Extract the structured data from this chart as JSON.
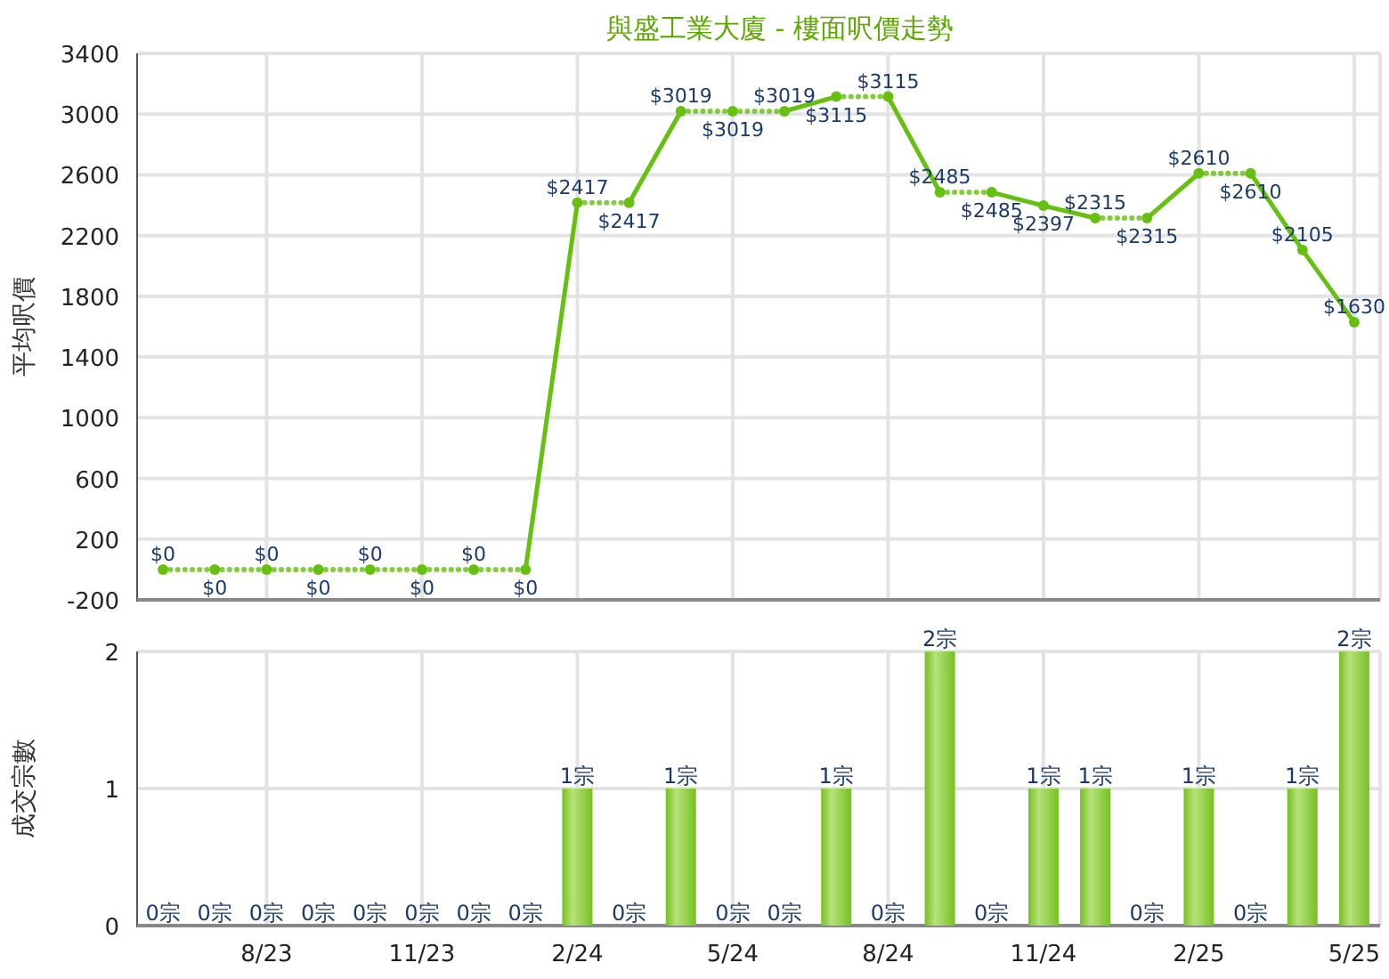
{
  "chart_data": [
    {
      "type": "line",
      "title": "與盛工業大廈 - 樓面呎價走勢",
      "ylabel": "平均呎價",
      "categories": [
        null,
        null,
        null,
        null,
        null,
        null,
        null,
        null,
        null,
        null,
        null,
        null,
        null,
        null,
        null,
        null,
        null,
        null,
        null,
        null,
        null,
        null,
        null,
        null
      ],
      "series": [
        {
          "color": "#66c010",
          "values": [
            0,
            0,
            0,
            0,
            0,
            0,
            0,
            0,
            2417,
            2417,
            3019,
            3019,
            3019,
            3115,
            3115,
            2485,
            2485,
            2397,
            2315,
            2315,
            2610,
            2610,
            2105,
            1630
          ],
          "value_labels": [
            "$0",
            "$0",
            "$0",
            "$0",
            "$0",
            "$0",
            "$0",
            "$0",
            "$2417",
            "$2417",
            "$3019",
            "$3019",
            "$3019",
            "$3115",
            "$3115",
            "$2485",
            "$2485",
            "$2397",
            "$2315",
            "$2315",
            "$2610",
            "$2610",
            "$2105",
            "$1630"
          ]
        }
      ],
      "ylim": [
        -200,
        3400
      ],
      "yticks": [
        -200,
        200,
        600,
        1000,
        1400,
        1800,
        2200,
        2600,
        3000,
        3400
      ],
      "grid": true,
      "tick_labels": "y",
      "marker": "circle"
    },
    {
      "type": "bar",
      "ylabel": "成交宗數",
      "categories": [
        null,
        null,
        "8/23",
        null,
        null,
        "11/23",
        null,
        null,
        "2/24",
        null,
        null,
        "5/24",
        null,
        null,
        "8/24",
        null,
        null,
        "11/24",
        null,
        null,
        "2/25",
        null,
        null,
        "5/25"
      ],
      "series": [
        {
          "color": "#77c022",
          "values": [
            0,
            0,
            0,
            0,
            0,
            0,
            0,
            0,
            1,
            0,
            1,
            0,
            0,
            1,
            0,
            2,
            0,
            1,
            1,
            0,
            1,
            0,
            1,
            2
          ],
          "value_labels": [
            "0宗",
            "0宗",
            "0宗",
            "0宗",
            "0宗",
            "0宗",
            "0宗",
            "0宗",
            "1宗",
            "0宗",
            "1宗",
            "0宗",
            "0宗",
            "1宗",
            "0宗",
            "2宗",
            "0宗",
            "1宗",
            "1宗",
            "0宗",
            "1宗",
            "0宗",
            "1宗",
            "2宗"
          ]
        }
      ],
      "ylim": [
        0,
        2
      ],
      "yticks": [
        0,
        1,
        2
      ],
      "grid": true
    }
  ]
}
